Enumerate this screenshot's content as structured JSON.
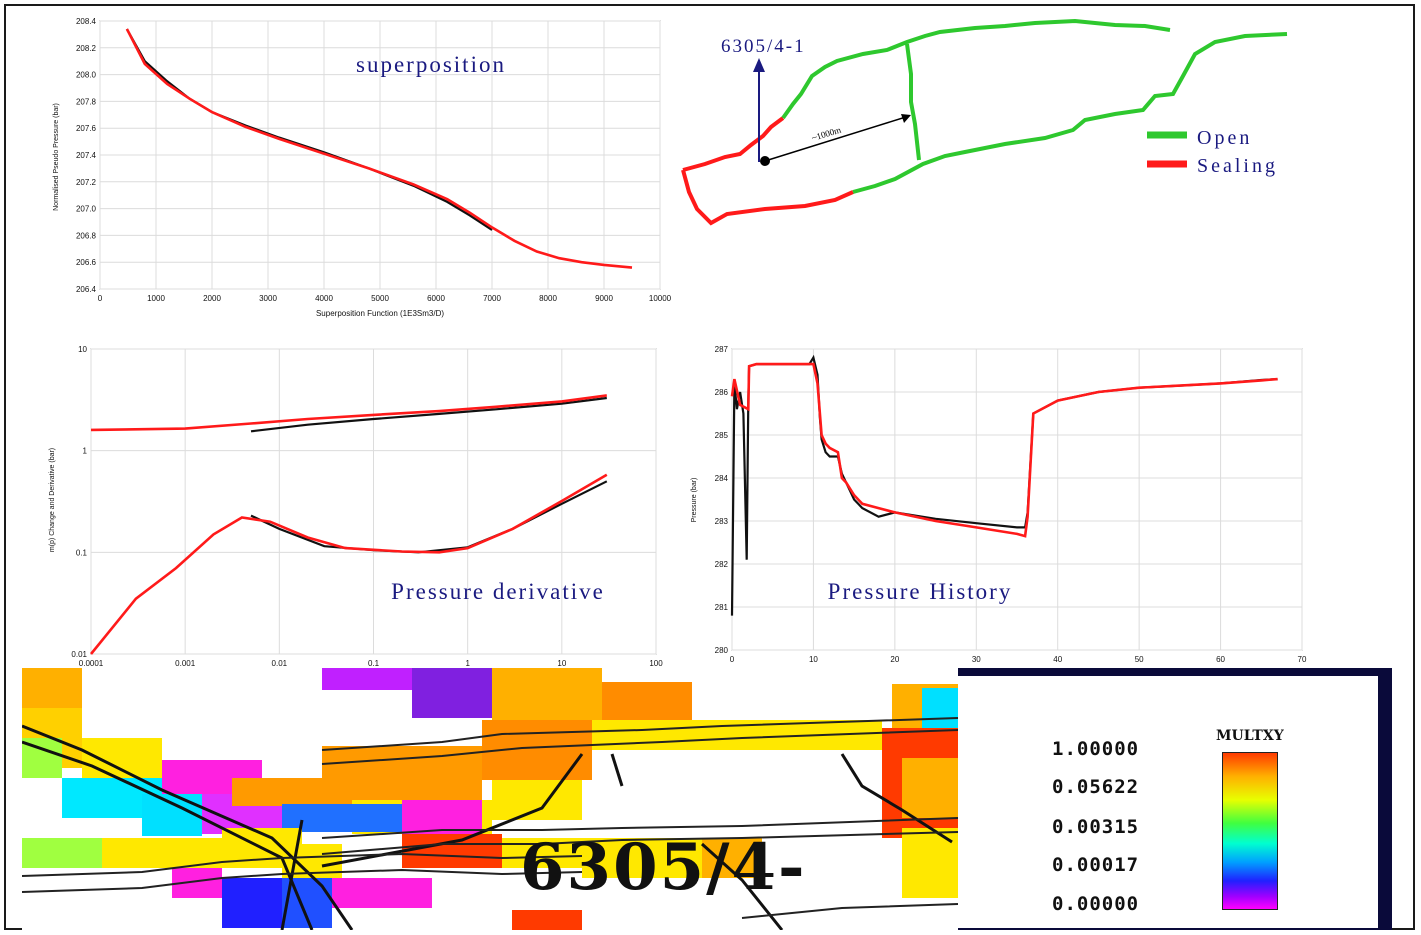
{
  "colors": {
    "sim": "#ff1a1a",
    "obs": "#111111",
    "open": "#2ec82e",
    "sealing": "#ff1a1a",
    "title": "#1a1a80"
  },
  "superposition": {
    "title": "superposition",
    "ylabel": "Normalised Pseudo Pressure (bar)",
    "xlabel": "Superposition Function (1E3Sm3/D)",
    "xticks": [
      "0",
      "1000",
      "2000",
      "3000",
      "4000",
      "5000",
      "6000",
      "7000",
      "8000",
      "9000",
      "10000"
    ],
    "yticks": [
      "206.4",
      "206.6",
      "206.8",
      "207.0",
      "207.2",
      "207.4",
      "207.6",
      "207.8",
      "208.0",
      "208.2",
      "208.4"
    ]
  },
  "map": {
    "well_label": "6305/4-1",
    "distance_label": "~1000m",
    "legend": [
      {
        "label": "Open",
        "color": "#2ec82e"
      },
      {
        "label": "Sealing",
        "color": "#ff1a1a"
      }
    ]
  },
  "derivative": {
    "title": "Pressure derivative",
    "ylabel": "m(p) Change and Derivative (bar)",
    "yticks": [
      "10",
      "1",
      "0.1",
      "0.01"
    ],
    "xticks": [
      "0.0001",
      "0.001",
      "0.01",
      "0.1",
      "1",
      "10",
      "100"
    ]
  },
  "history": {
    "title": "Pressure History",
    "ylabel": "Pressure (bar)",
    "yticks": [
      "287",
      "286",
      "285",
      "284",
      "283",
      "282",
      "281",
      "280"
    ],
    "xticks": [
      "0",
      "10",
      "20",
      "30",
      "40",
      "50",
      "60",
      "70"
    ]
  },
  "grid_panel": {
    "well_label": "6305/4-",
    "colorbar_title": "MULTXY",
    "colorbar_values": [
      "1.00000",
      "0.05622",
      "0.00315",
      "0.00017",
      "0.00000"
    ]
  },
  "chart_data": [
    {
      "type": "line",
      "title": "superposition",
      "xlabel": "Superposition Function (1E3Sm3/D)",
      "ylabel": "Normalised Pseudo Pressure (bar)",
      "xlim": [
        0,
        10000
      ],
      "ylim": [
        206.4,
        208.4
      ],
      "series": [
        {
          "color": "#111111",
          "x": [
            480,
            800,
            1200,
            1600,
            2000,
            2600,
            3200,
            4000,
            4800,
            5600,
            6200,
            6600,
            7000
          ],
          "y": [
            208.34,
            208.1,
            207.95,
            207.82,
            207.72,
            207.62,
            207.53,
            207.42,
            207.3,
            207.17,
            207.05,
            206.95,
            206.84
          ]
        },
        {
          "color": "#ff1a1a",
          "x": [
            480,
            800,
            1200,
            1600,
            2000,
            2600,
            3200,
            4000,
            4800,
            5600,
            6200,
            6600,
            7000,
            7400,
            7800,
            8200,
            8600,
            9000,
            9500
          ],
          "y": [
            208.34,
            208.08,
            207.93,
            207.82,
            207.72,
            207.61,
            207.52,
            207.41,
            207.3,
            207.18,
            207.07,
            206.97,
            206.86,
            206.76,
            206.68,
            206.63,
            206.6,
            206.58,
            206.56
          ]
        }
      ]
    },
    {
      "type": "line",
      "title": "Pressure derivative",
      "ylabel": "m(p) Change and Derivative (bar)",
      "x_scale": "log",
      "y_scale": "log",
      "xlim": [
        0.0001,
        100
      ],
      "ylim": [
        0.01,
        10
      ],
      "series": [
        {
          "color": "#111111",
          "x": [
            0.005,
            0.02,
            0.1,
            0.5,
            2,
            10,
            30
          ],
          "y": [
            1.55,
            1.8,
            2.05,
            2.3,
            2.55,
            2.9,
            3.3
          ]
        },
        {
          "color": "#ff1a1a",
          "x": [
            0.0001,
            0.001,
            0.005,
            0.02,
            0.1,
            0.5,
            2,
            10,
            30
          ],
          "y": [
            1.6,
            1.65,
            1.85,
            2.05,
            2.25,
            2.45,
            2.7,
            3.05,
            3.5
          ]
        },
        {
          "color": "#111111",
          "x": [
            0.005,
            0.01,
            0.03,
            0.1,
            0.3,
            1,
            3,
            10,
            30
          ],
          "y": [
            0.23,
            0.17,
            0.115,
            0.105,
            0.1,
            0.112,
            0.17,
            0.3,
            0.5
          ]
        },
        {
          "color": "#ff1a1a",
          "x": [
            0.0001,
            0.0003,
            0.0008,
            0.002,
            0.004,
            0.008,
            0.02,
            0.05,
            0.2,
            0.5,
            1,
            3,
            10,
            30
          ],
          "y": [
            0.01,
            0.035,
            0.07,
            0.15,
            0.22,
            0.2,
            0.14,
            0.11,
            0.102,
            0.1,
            0.11,
            0.17,
            0.32,
            0.58
          ]
        }
      ]
    },
    {
      "type": "line",
      "title": "Pressure History",
      "ylabel": "Pressure (bar)",
      "xlim": [
        0,
        70
      ],
      "ylim": [
        280,
        287
      ],
      "series": [
        {
          "color": "#111111",
          "x": [
            0,
            0.3,
            0.6,
            1,
            1.4,
            1.8,
            2,
            2.1,
            3,
            6,
            9.5,
            10,
            10.5,
            10.8,
            11,
            11.5,
            12,
            13,
            13.5,
            14,
            14.5,
            15,
            15.5,
            16,
            18,
            20,
            25,
            30,
            35,
            36,
            36.3,
            37,
            40,
            45,
            50,
            55,
            60,
            65,
            67
          ],
          "y": [
            280.8,
            286.2,
            285.6,
            286.0,
            285.5,
            282.1,
            285.8,
            286.6,
            286.65,
            286.65,
            286.65,
            286.8,
            286.4,
            285.4,
            284.9,
            284.6,
            284.5,
            284.5,
            284.1,
            283.9,
            283.7,
            283.5,
            283.4,
            283.3,
            283.1,
            283.2,
            283.05,
            282.95,
            282.85,
            282.85,
            283.2,
            285.5,
            285.8,
            286.0,
            286.1,
            286.15,
            286.2,
            286.28,
            286.3
          ]
        },
        {
          "color": "#ff1a1a",
          "x": [
            0,
            0.3,
            1,
            2,
            2.1,
            3,
            6,
            10,
            10.5,
            11,
            11.5,
            12,
            13,
            13.5,
            14,
            15,
            15.5,
            16,
            18,
            20,
            25,
            30,
            35,
            36,
            36.3,
            37,
            40,
            45,
            50,
            55,
            60,
            65,
            67
          ],
          "y": [
            285.9,
            286.3,
            285.7,
            285.6,
            286.6,
            286.65,
            286.65,
            286.65,
            286.2,
            285.0,
            284.8,
            284.7,
            284.6,
            284.0,
            283.9,
            283.6,
            283.5,
            283.4,
            283.3,
            283.2,
            283.0,
            282.85,
            282.7,
            282.65,
            283.1,
            285.5,
            285.8,
            286.0,
            286.1,
            286.15,
            286.2,
            286.27,
            286.3
          ]
        }
      ]
    }
  ]
}
